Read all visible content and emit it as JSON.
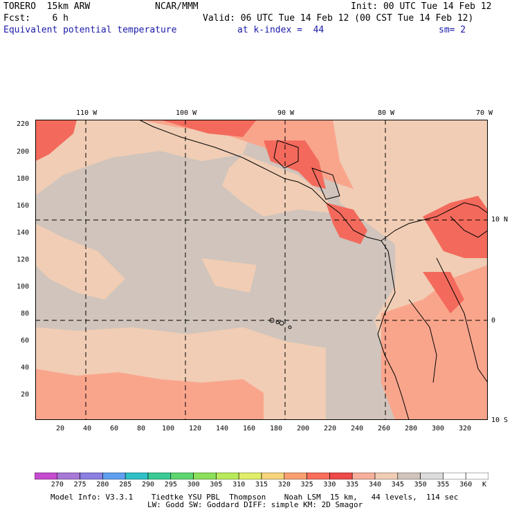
{
  "header": {
    "model": "TORERO  15km ARW",
    "org": "NCAR/MMM",
    "init": "Init: 00 UTC Tue 14 Feb 12",
    "fcst": "Fcst:    6 h",
    "valid": "Valid: 06 UTC Tue 14 Feb 12 (00 CST Tue 14 Feb 12)",
    "field": "Equivalent potential temperature",
    "level": "at k-index =  44",
    "smooth": "sm= 2"
  },
  "axes": {
    "top_lon": [
      "110 W",
      "100 W",
      "90 W",
      "80 W",
      "70 W"
    ],
    "right_lat": [
      "10 N",
      "0",
      "10 S"
    ],
    "left_y": [
      "220",
      "200",
      "180",
      "160",
      "140",
      "120",
      "100",
      "80",
      "60",
      "40",
      "20"
    ],
    "bottom_x": [
      "20",
      "40",
      "60",
      "80",
      "100",
      "120",
      "140",
      "160",
      "180",
      "200",
      "220",
      "240",
      "260",
      "280",
      "300",
      "320"
    ]
  },
  "colorbar": {
    "labels": [
      "270",
      "275",
      "280",
      "285",
      "290",
      "295",
      "300",
      "305",
      "310",
      "315",
      "320",
      "325",
      "330",
      "335",
      "340",
      "345",
      "350",
      "355",
      "360"
    ],
    "unit": "K",
    "colors": [
      "#c64ccf",
      "#a778d6",
      "#8b7fe3",
      "#5f9ff0",
      "#2fc0c8",
      "#3acb95",
      "#5ed670",
      "#8de05a",
      "#b9ea5c",
      "#e0ee6a",
      "#f7d47c",
      "#f9a070",
      "#f96e5c",
      "#ee4a4a",
      "#f7b09c",
      "#f0cdb4",
      "#d0c4bc",
      "#dcdcdc",
      "#ffffff"
    ]
  },
  "map_colors": {
    "ocean_base": "#d0c4bc",
    "band_light": "#f0cdb4",
    "band_salmon": "#f9a58c",
    "hot": "#f36a5c",
    "hottest": "#ee4a4a",
    "grid": "#000000"
  },
  "footer": {
    "line1": "Model Info: V3.3.1    Tiedtke YSU PBL  Thompson    Noah LSM  15 km,   44 levels,  114 sec",
    "line2": "LW: Godd SW: Goddard DIFF: simple KM: 2D Smagor"
  }
}
